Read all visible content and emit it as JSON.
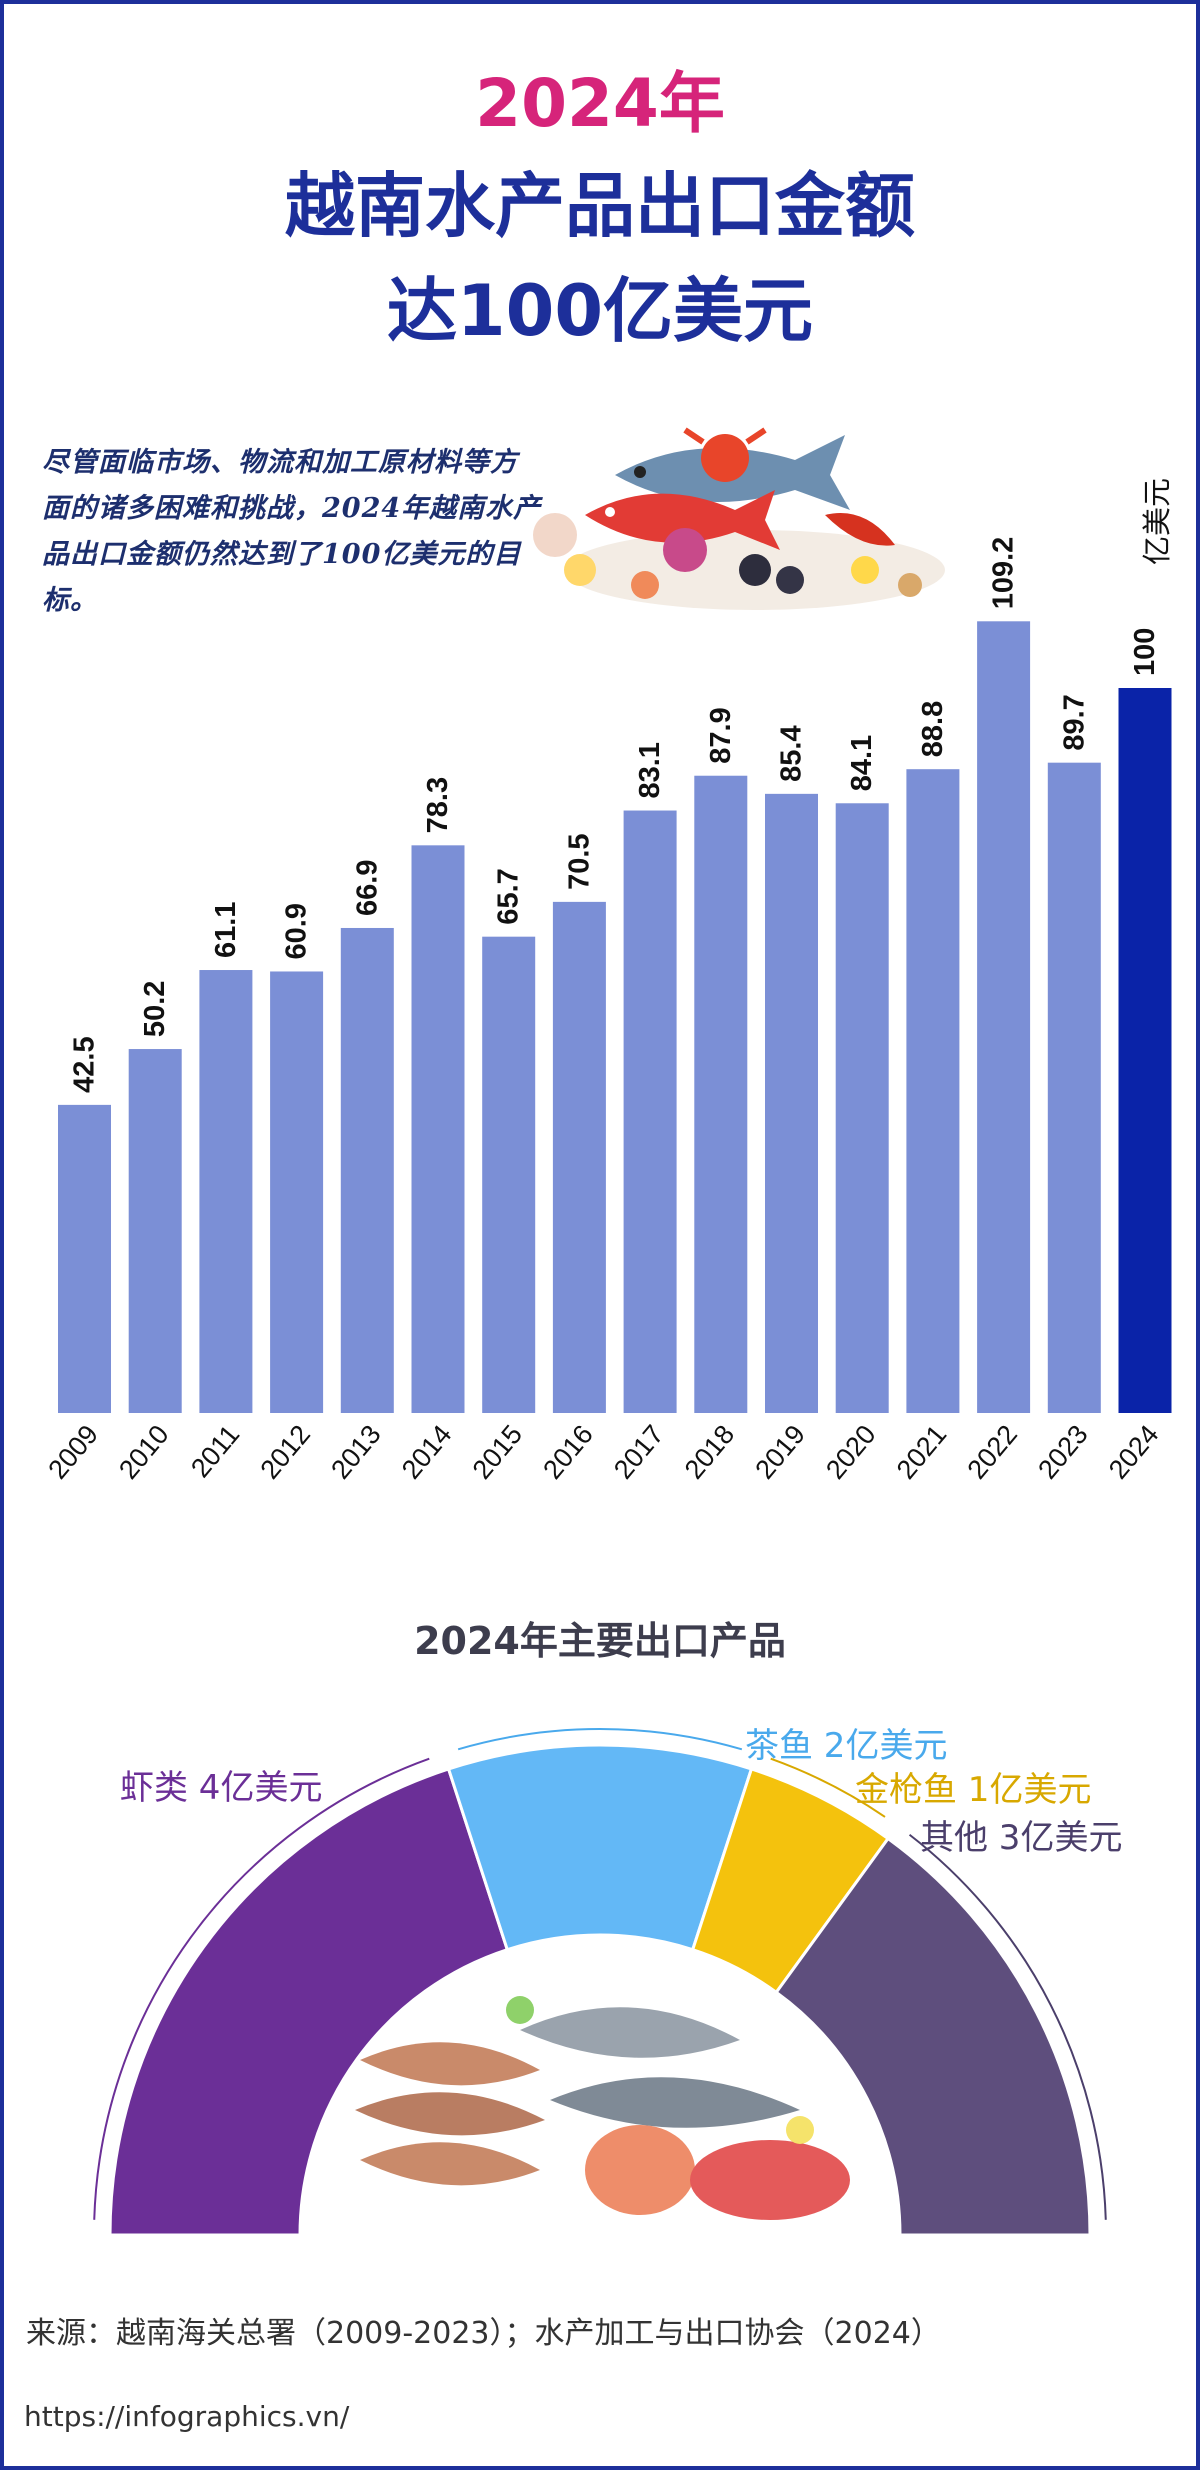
{
  "header": {
    "year_line": "2024年",
    "line2": "越南水产品出口金额",
    "line3": "达100亿美元"
  },
  "intro": {
    "text": "尽管面临市场、物流和加工原材料等方面的诸多困难和挑战，2024年越南水产品出口金额仍然达到了100亿美元的目标。"
  },
  "chart_data": [
    {
      "type": "bar",
      "unit": "亿美元",
      "categories": [
        "2009",
        "2010",
        "2011",
        "2012",
        "2013",
        "2014",
        "2015",
        "2016",
        "2017",
        "2018",
        "2019",
        "2020",
        "2021",
        "2022",
        "2023",
        "2024"
      ],
      "values": [
        42.5,
        50.2,
        61.1,
        60.9,
        66.9,
        78.3,
        65.7,
        70.5,
        83.1,
        87.9,
        85.4,
        84.1,
        88.8,
        109.2,
        89.7,
        100
      ],
      "value_labels": [
        "42.5",
        "50.2",
        "61.1",
        "60.9",
        "66.9",
        "78.3",
        "65.7",
        "70.5",
        "83.1",
        "87.9",
        "85.4",
        "84.1",
        "88.8",
        "109.2",
        "89.7",
        "100"
      ],
      "highlight_index": 15,
      "colors": {
        "bar": "#7b8fd6",
        "highlight": "#0a23a8"
      },
      "ylim": [
        0,
        115
      ]
    },
    {
      "type": "pie",
      "title": "2024年主要出口产品",
      "slices": [
        {
          "name": "虾类",
          "label": "虾类 4亿美元",
          "value": 4,
          "color": "#6b2f97"
        },
        {
          "name": "茶鱼",
          "label": "茶鱼 2亿美元",
          "value": 2,
          "color": "#63b8f6"
        },
        {
          "name": "金枪鱼",
          "label": "金枪鱼 1亿美元",
          "value": 1,
          "color": "#f4c20d"
        },
        {
          "name": "其他",
          "label": "其他 3亿美元",
          "value": 3,
          "color": "#5e4e7d"
        }
      ],
      "label_colors": [
        "#6b2f97",
        "#49a9ec",
        "#d8a800",
        "#4b3f6b"
      ]
    }
  ],
  "footer": {
    "source": "来源：越南海关总署（2009-2023）；水产加工与出口协会（2024）",
    "url": "https://infographics.vn/"
  }
}
